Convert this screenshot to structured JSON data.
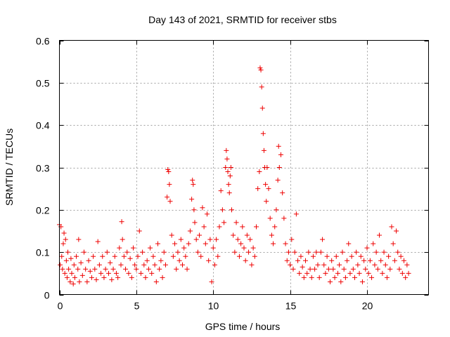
{
  "chart_data": {
    "type": "scatter",
    "title": "Day 143 of 2021, SRMTID for receiver stbs",
    "xlabel": "GPS time / hours",
    "ylabel": "SRMTID / TECUs",
    "xlim": [
      0,
      24
    ],
    "ylim": [
      0,
      0.6
    ],
    "xticks": [
      0,
      5,
      10,
      15,
      20
    ],
    "xtick_labels": [
      "0",
      "5",
      "10",
      "15",
      "20"
    ],
    "yticks": [
      0,
      0.1,
      0.2,
      0.3,
      0.4,
      0.5,
      0.6
    ],
    "ytick_labels": [
      "0",
      "0.1",
      "0.2",
      "0.3",
      "0.4",
      "0.5",
      "0.6"
    ],
    "grid": true,
    "marker": "+",
    "color": "#ee0000",
    "series": [
      {
        "name": "stbs",
        "points": [
          [
            0.0,
            0.165
          ],
          [
            0.05,
            0.07
          ],
          [
            0.1,
            0.16
          ],
          [
            0.15,
            0.09
          ],
          [
            0.2,
            0.06
          ],
          [
            0.25,
            0.12
          ],
          [
            0.3,
            0.145
          ],
          [
            0.35,
            0.05
          ],
          [
            0.4,
            0.13
          ],
          [
            0.45,
            0.08
          ],
          [
            0.5,
            0.04
          ],
          [
            0.55,
            0.1
          ],
          [
            0.6,
            0.06
          ],
          [
            0.7,
            0.03
          ],
          [
            0.75,
            0.085
          ],
          [
            0.8,
            0.05
          ],
          [
            0.9,
            0.025
          ],
          [
            0.95,
            0.07
          ],
          [
            1.0,
            0.04
          ],
          [
            1.1,
            0.09
          ],
          [
            1.2,
            0.06
          ],
          [
            1.25,
            0.13
          ],
          [
            1.3,
            0.03
          ],
          [
            1.4,
            0.075
          ],
          [
            1.5,
            0.045
          ],
          [
            1.6,
            0.1
          ],
          [
            1.7,
            0.06
          ],
          [
            1.8,
            0.03
          ],
          [
            1.9,
            0.08
          ],
          [
            2.0,
            0.055
          ],
          [
            2.1,
            0.04
          ],
          [
            2.2,
            0.09
          ],
          [
            2.3,
            0.06
          ],
          [
            2.4,
            0.035
          ],
          [
            2.5,
            0.125
          ],
          [
            2.6,
            0.07
          ],
          [
            2.7,
            0.05
          ],
          [
            2.8,
            0.09
          ],
          [
            2.9,
            0.04
          ],
          [
            3.0,
            0.06
          ],
          [
            3.1,
            0.1
          ],
          [
            3.2,
            0.05
          ],
          [
            3.3,
            0.075
          ],
          [
            3.4,
            0.035
          ],
          [
            3.5,
            0.06
          ],
          [
            3.6,
            0.09
          ],
          [
            3.7,
            0.05
          ],
          [
            3.8,
            0.04
          ],
          [
            3.9,
            0.11
          ],
          [
            4.0,
            0.07
          ],
          [
            4.05,
            0.172
          ],
          [
            4.1,
            0.13
          ],
          [
            4.2,
            0.09
          ],
          [
            4.3,
            0.06
          ],
          [
            4.4,
            0.1
          ],
          [
            4.5,
            0.05
          ],
          [
            4.6,
            0.085
          ],
          [
            4.7,
            0.04
          ],
          [
            4.8,
            0.11
          ],
          [
            4.9,
            0.07
          ],
          [
            5.0,
            0.06
          ],
          [
            5.1,
            0.09
          ],
          [
            5.2,
            0.15
          ],
          [
            5.3,
            0.05
          ],
          [
            5.4,
            0.1
          ],
          [
            5.5,
            0.07
          ],
          [
            5.6,
            0.04
          ],
          [
            5.7,
            0.08
          ],
          [
            5.8,
            0.06
          ],
          [
            5.9,
            0.11
          ],
          [
            6.0,
            0.05
          ],
          [
            6.1,
            0.09
          ],
          [
            6.2,
            0.07
          ],
          [
            6.3,
            0.03
          ],
          [
            6.4,
            0.12
          ],
          [
            6.5,
            0.06
          ],
          [
            6.6,
            0.08
          ],
          [
            6.7,
            0.04
          ],
          [
            6.8,
            0.1
          ],
          [
            6.9,
            0.07
          ],
          [
            7.0,
            0.23
          ],
          [
            7.05,
            0.295
          ],
          [
            7.1,
            0.29
          ],
          [
            7.15,
            0.26
          ],
          [
            7.2,
            0.22
          ],
          [
            7.3,
            0.14
          ],
          [
            7.4,
            0.09
          ],
          [
            7.5,
            0.12
          ],
          [
            7.6,
            0.06
          ],
          [
            7.7,
            0.1
          ],
          [
            7.8,
            0.08
          ],
          [
            7.9,
            0.13
          ],
          [
            8.0,
            0.07
          ],
          [
            8.1,
            0.11
          ],
          [
            8.2,
            0.09
          ],
          [
            8.3,
            0.06
          ],
          [
            8.4,
            0.12
          ],
          [
            8.5,
            0.15
          ],
          [
            8.6,
            0.225
          ],
          [
            8.65,
            0.27
          ],
          [
            8.7,
            0.26
          ],
          [
            8.75,
            0.2
          ],
          [
            8.8,
            0.17
          ],
          [
            8.9,
            0.13
          ],
          [
            9.0,
            0.1
          ],
          [
            9.1,
            0.14
          ],
          [
            9.2,
            0.09
          ],
          [
            9.3,
            0.205
          ],
          [
            9.4,
            0.16
          ],
          [
            9.5,
            0.12
          ],
          [
            9.6,
            0.19
          ],
          [
            9.7,
            0.08
          ],
          [
            9.8,
            0.13
          ],
          [
            9.9,
            0.03
          ],
          [
            10.0,
            0.11
          ],
          [
            10.1,
            0.07
          ],
          [
            10.2,
            0.13
          ],
          [
            10.3,
            0.09
          ],
          [
            10.4,
            0.16
          ],
          [
            10.5,
            0.245
          ],
          [
            10.6,
            0.2
          ],
          [
            10.7,
            0.17
          ],
          [
            10.8,
            0.3
          ],
          [
            10.85,
            0.34
          ],
          [
            10.9,
            0.32
          ],
          [
            10.95,
            0.29
          ],
          [
            11.0,
            0.26
          ],
          [
            11.05,
            0.24
          ],
          [
            11.1,
            0.28
          ],
          [
            11.15,
            0.3
          ],
          [
            11.2,
            0.2
          ],
          [
            11.3,
            0.14
          ],
          [
            11.4,
            0.1
          ],
          [
            11.5,
            0.17
          ],
          [
            11.6,
            0.13
          ],
          [
            11.7,
            0.09
          ],
          [
            11.8,
            0.12
          ],
          [
            11.9,
            0.16
          ],
          [
            12.0,
            0.11
          ],
          [
            12.1,
            0.08
          ],
          [
            12.2,
            0.14
          ],
          [
            12.3,
            0.1
          ],
          [
            12.4,
            0.13
          ],
          [
            12.5,
            0.07
          ],
          [
            12.6,
            0.11
          ],
          [
            12.7,
            0.09
          ],
          [
            12.8,
            0.16
          ],
          [
            12.9,
            0.25
          ],
          [
            13.0,
            0.29
          ],
          [
            13.05,
            0.535
          ],
          [
            13.1,
            0.53
          ],
          [
            13.15,
            0.49
          ],
          [
            13.2,
            0.44
          ],
          [
            13.25,
            0.38
          ],
          [
            13.3,
            0.34
          ],
          [
            13.35,
            0.3
          ],
          [
            13.4,
            0.26
          ],
          [
            13.45,
            0.22
          ],
          [
            13.5,
            0.3
          ],
          [
            13.6,
            0.25
          ],
          [
            13.7,
            0.18
          ],
          [
            13.8,
            0.14
          ],
          [
            13.9,
            0.12
          ],
          [
            14.0,
            0.16
          ],
          [
            14.1,
            0.2
          ],
          [
            14.2,
            0.27
          ],
          [
            14.25,
            0.35
          ],
          [
            14.3,
            0.3
          ],
          [
            14.4,
            0.33
          ],
          [
            14.5,
            0.24
          ],
          [
            14.6,
            0.18
          ],
          [
            14.7,
            0.12
          ],
          [
            14.8,
            0.08
          ],
          [
            14.9,
            0.1
          ],
          [
            15.0,
            0.07
          ],
          [
            15.1,
            0.13
          ],
          [
            15.2,
            0.06
          ],
          [
            15.3,
            0.1
          ],
          [
            15.4,
            0.19
          ],
          [
            15.5,
            0.08
          ],
          [
            15.6,
            0.05
          ],
          [
            15.7,
            0.09
          ],
          [
            15.8,
            0.065
          ],
          [
            15.9,
            0.04
          ],
          [
            16.0,
            0.08
          ],
          [
            16.1,
            0.05
          ],
          [
            16.2,
            0.1
          ],
          [
            16.3,
            0.06
          ],
          [
            16.4,
            0.04
          ],
          [
            16.5,
            0.09
          ],
          [
            16.6,
            0.06
          ],
          [
            16.7,
            0.1
          ],
          [
            16.8,
            0.07
          ],
          [
            16.9,
            0.04
          ],
          [
            17.0,
            0.1
          ],
          [
            17.1,
            0.13
          ],
          [
            17.2,
            0.07
          ],
          [
            17.3,
            0.05
          ],
          [
            17.4,
            0.09
          ],
          [
            17.5,
            0.06
          ],
          [
            17.6,
            0.03
          ],
          [
            17.7,
            0.08
          ],
          [
            17.8,
            0.06
          ],
          [
            17.9,
            0.04
          ],
          [
            18.0,
            0.09
          ],
          [
            18.1,
            0.05
          ],
          [
            18.2,
            0.07
          ],
          [
            18.3,
            0.03
          ],
          [
            18.4,
            0.1
          ],
          [
            18.5,
            0.06
          ],
          [
            18.6,
            0.04
          ],
          [
            18.7,
            0.08
          ],
          [
            18.8,
            0.12
          ],
          [
            18.9,
            0.05
          ],
          [
            19.0,
            0.09
          ],
          [
            19.1,
            0.06
          ],
          [
            19.2,
            0.04
          ],
          [
            19.3,
            0.1
          ],
          [
            19.4,
            0.07
          ],
          [
            19.5,
            0.05
          ],
          [
            19.6,
            0.09
          ],
          [
            19.7,
            0.03
          ],
          [
            19.8,
            0.08
          ],
          [
            19.9,
            0.06
          ],
          [
            20.0,
            0.11
          ],
          [
            20.1,
            0.05
          ],
          [
            20.2,
            0.08
          ],
          [
            20.3,
            0.04
          ],
          [
            20.4,
            0.12
          ],
          [
            20.5,
            0.07
          ],
          [
            20.6,
            0.1
          ],
          [
            20.7,
            0.06
          ],
          [
            20.8,
            0.14
          ],
          [
            20.9,
            0.08
          ],
          [
            21.0,
            0.05
          ],
          [
            21.1,
            0.1
          ],
          [
            21.2,
            0.07
          ],
          [
            21.3,
            0.04
          ],
          [
            21.4,
            0.09
          ],
          [
            21.5,
            0.06
          ],
          [
            21.6,
            0.16
          ],
          [
            21.7,
            0.12
          ],
          [
            21.8,
            0.08
          ],
          [
            21.9,
            0.15
          ],
          [
            22.0,
            0.1
          ],
          [
            22.1,
            0.06
          ],
          [
            22.2,
            0.09
          ],
          [
            22.3,
            0.05
          ],
          [
            22.4,
            0.08
          ],
          [
            22.5,
            0.04
          ],
          [
            22.6,
            0.07
          ],
          [
            22.7,
            0.05
          ]
        ]
      }
    ]
  }
}
